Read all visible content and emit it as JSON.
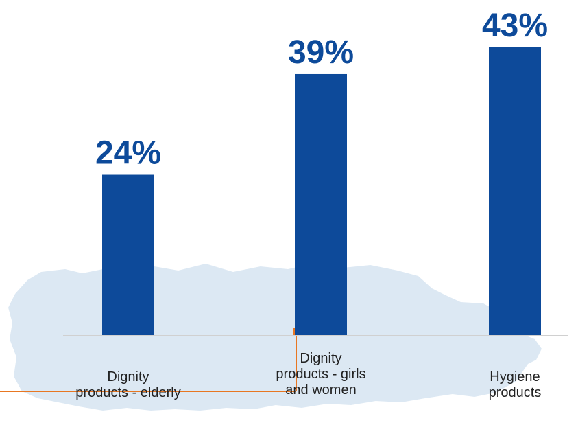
{
  "chart_data": {
    "type": "bar",
    "categories": [
      [
        "Dignity",
        "products - elderly"
      ],
      [
        "Dignity",
        "products - girls",
        "and women"
      ],
      [
        "Hygiene",
        "products"
      ]
    ],
    "values": [
      24,
      39,
      43
    ],
    "value_labels": [
      "24%",
      "39%",
      "43%"
    ],
    "ylim": [
      0,
      45
    ],
    "grid": false,
    "title": "",
    "xlabel": "",
    "ylabel": ""
  },
  "colors": {
    "bar": "#0d4a9a",
    "value_label": "#0d4a9a",
    "baseline": "#d0d0d0",
    "map_background": "#dce8f3",
    "accent_orange": "#e87722"
  }
}
